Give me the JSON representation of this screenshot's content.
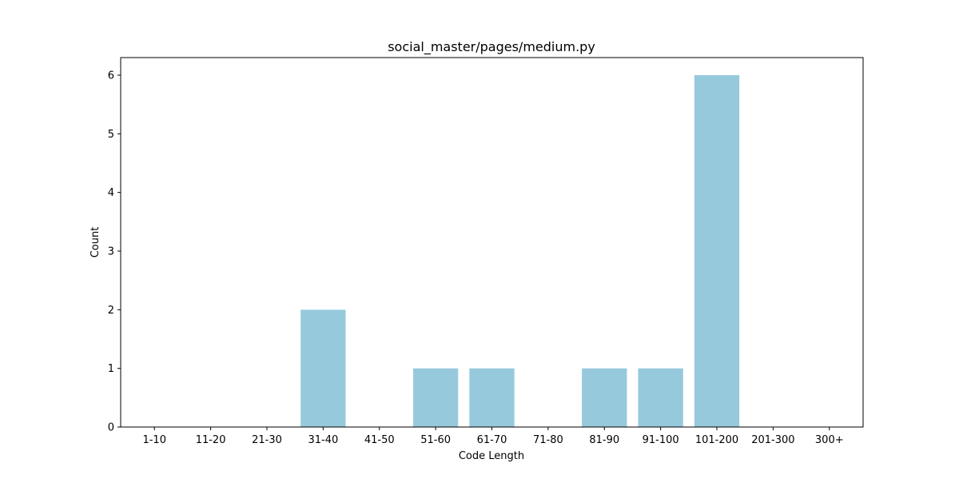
{
  "chart_data": {
    "type": "bar",
    "title": "social_master/pages/medium.py",
    "xlabel": "Code Length",
    "ylabel": "Count",
    "categories": [
      "1-10",
      "11-20",
      "21-30",
      "31-40",
      "41-50",
      "51-60",
      "61-70",
      "71-80",
      "81-90",
      "91-100",
      "101-200",
      "201-300",
      "300+"
    ],
    "values": [
      0,
      0,
      0,
      2,
      0,
      1,
      1,
      0,
      1,
      1,
      6,
      0,
      0
    ],
    "ylim": [
      0,
      6.3
    ],
    "yticks": [
      0,
      1,
      2,
      3,
      4,
      5,
      6
    ],
    "grid": false,
    "legend": "none",
    "bar_color": "#96c9dc"
  }
}
